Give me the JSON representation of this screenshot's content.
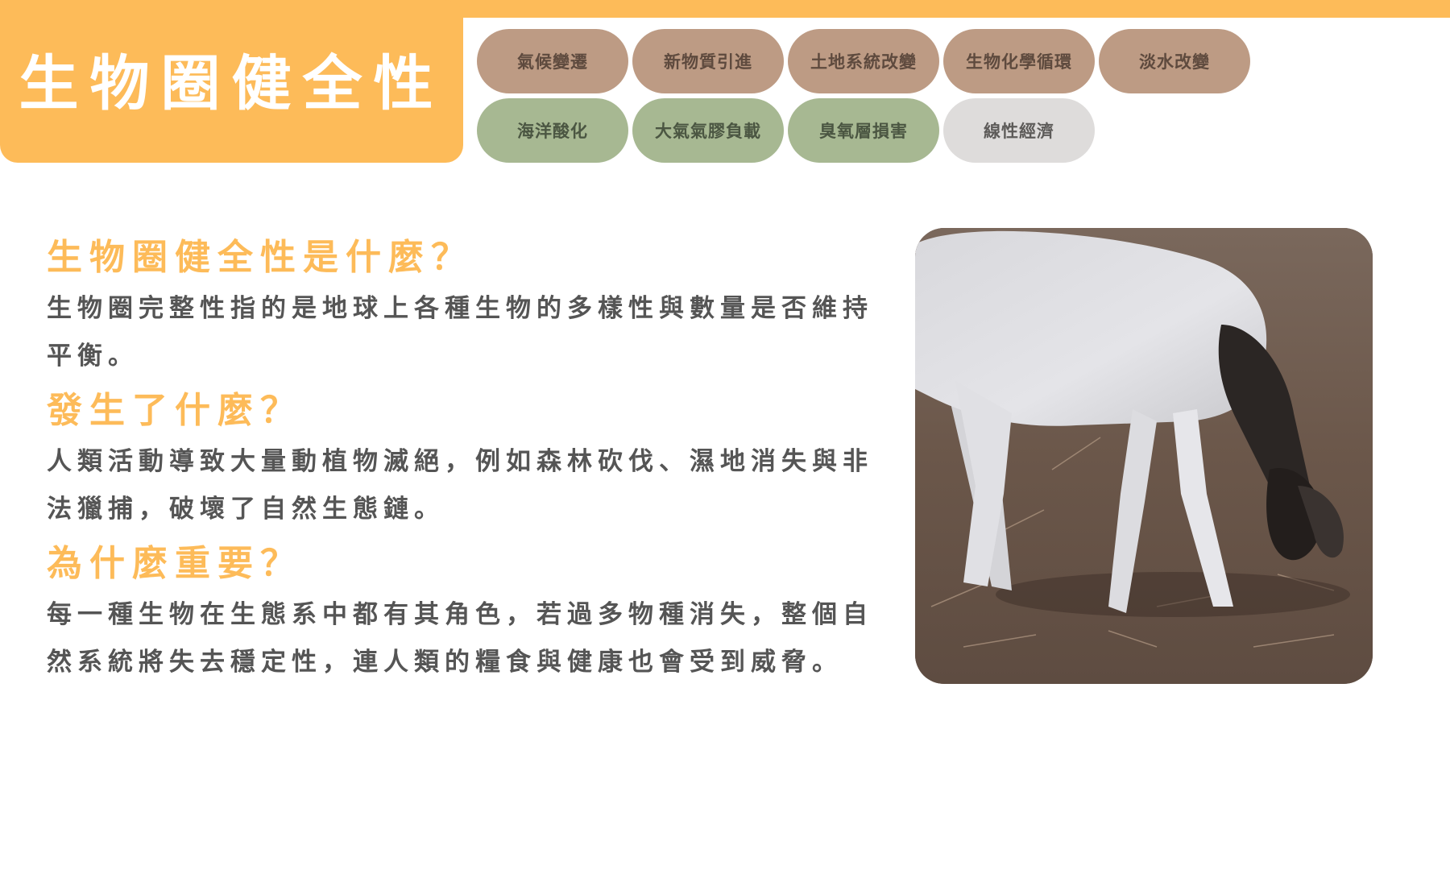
{
  "header": {
    "title": "生物圈健全性"
  },
  "nav": {
    "row1": [
      {
        "label": "氣候變遷",
        "color": "brown"
      },
      {
        "label": "新物質引進",
        "color": "brown"
      },
      {
        "label": "土地系統改變",
        "color": "brown"
      },
      {
        "label": "生物化學循環",
        "color": "brown"
      },
      {
        "label": "淡水改變",
        "color": "brown"
      }
    ],
    "row2": [
      {
        "label": "海洋酸化",
        "color": "green"
      },
      {
        "label": "大氣氣膠負載",
        "color": "green"
      },
      {
        "label": "臭氧層損害",
        "color": "green"
      },
      {
        "label": "線性經濟",
        "color": "grey"
      }
    ]
  },
  "sections": [
    {
      "heading": "生物圈健全性是什麼？",
      "body": "生物圈完整性指的是地球上各種生物的多樣性與數量是否維持平衡。"
    },
    {
      "heading": "發生了什麼？",
      "body": "人類活動導致大量動植物滅絕，例如森林砍伐、濕地消失與非法獵捕，破壞了自然生態鏈。"
    },
    {
      "heading": "為什麼重要？",
      "body": "每一種生物在生態系中都有其角色，若過多物種消失，整個自然系統將失去穩定性，連人類的糧食與健康也會受到威脅。"
    }
  ],
  "colors": {
    "accent": "#fdbb59",
    "pill_brown": "#bd9b84",
    "pill_green": "#a7b892",
    "pill_grey": "#dedcdb",
    "body_text": "#555555"
  }
}
